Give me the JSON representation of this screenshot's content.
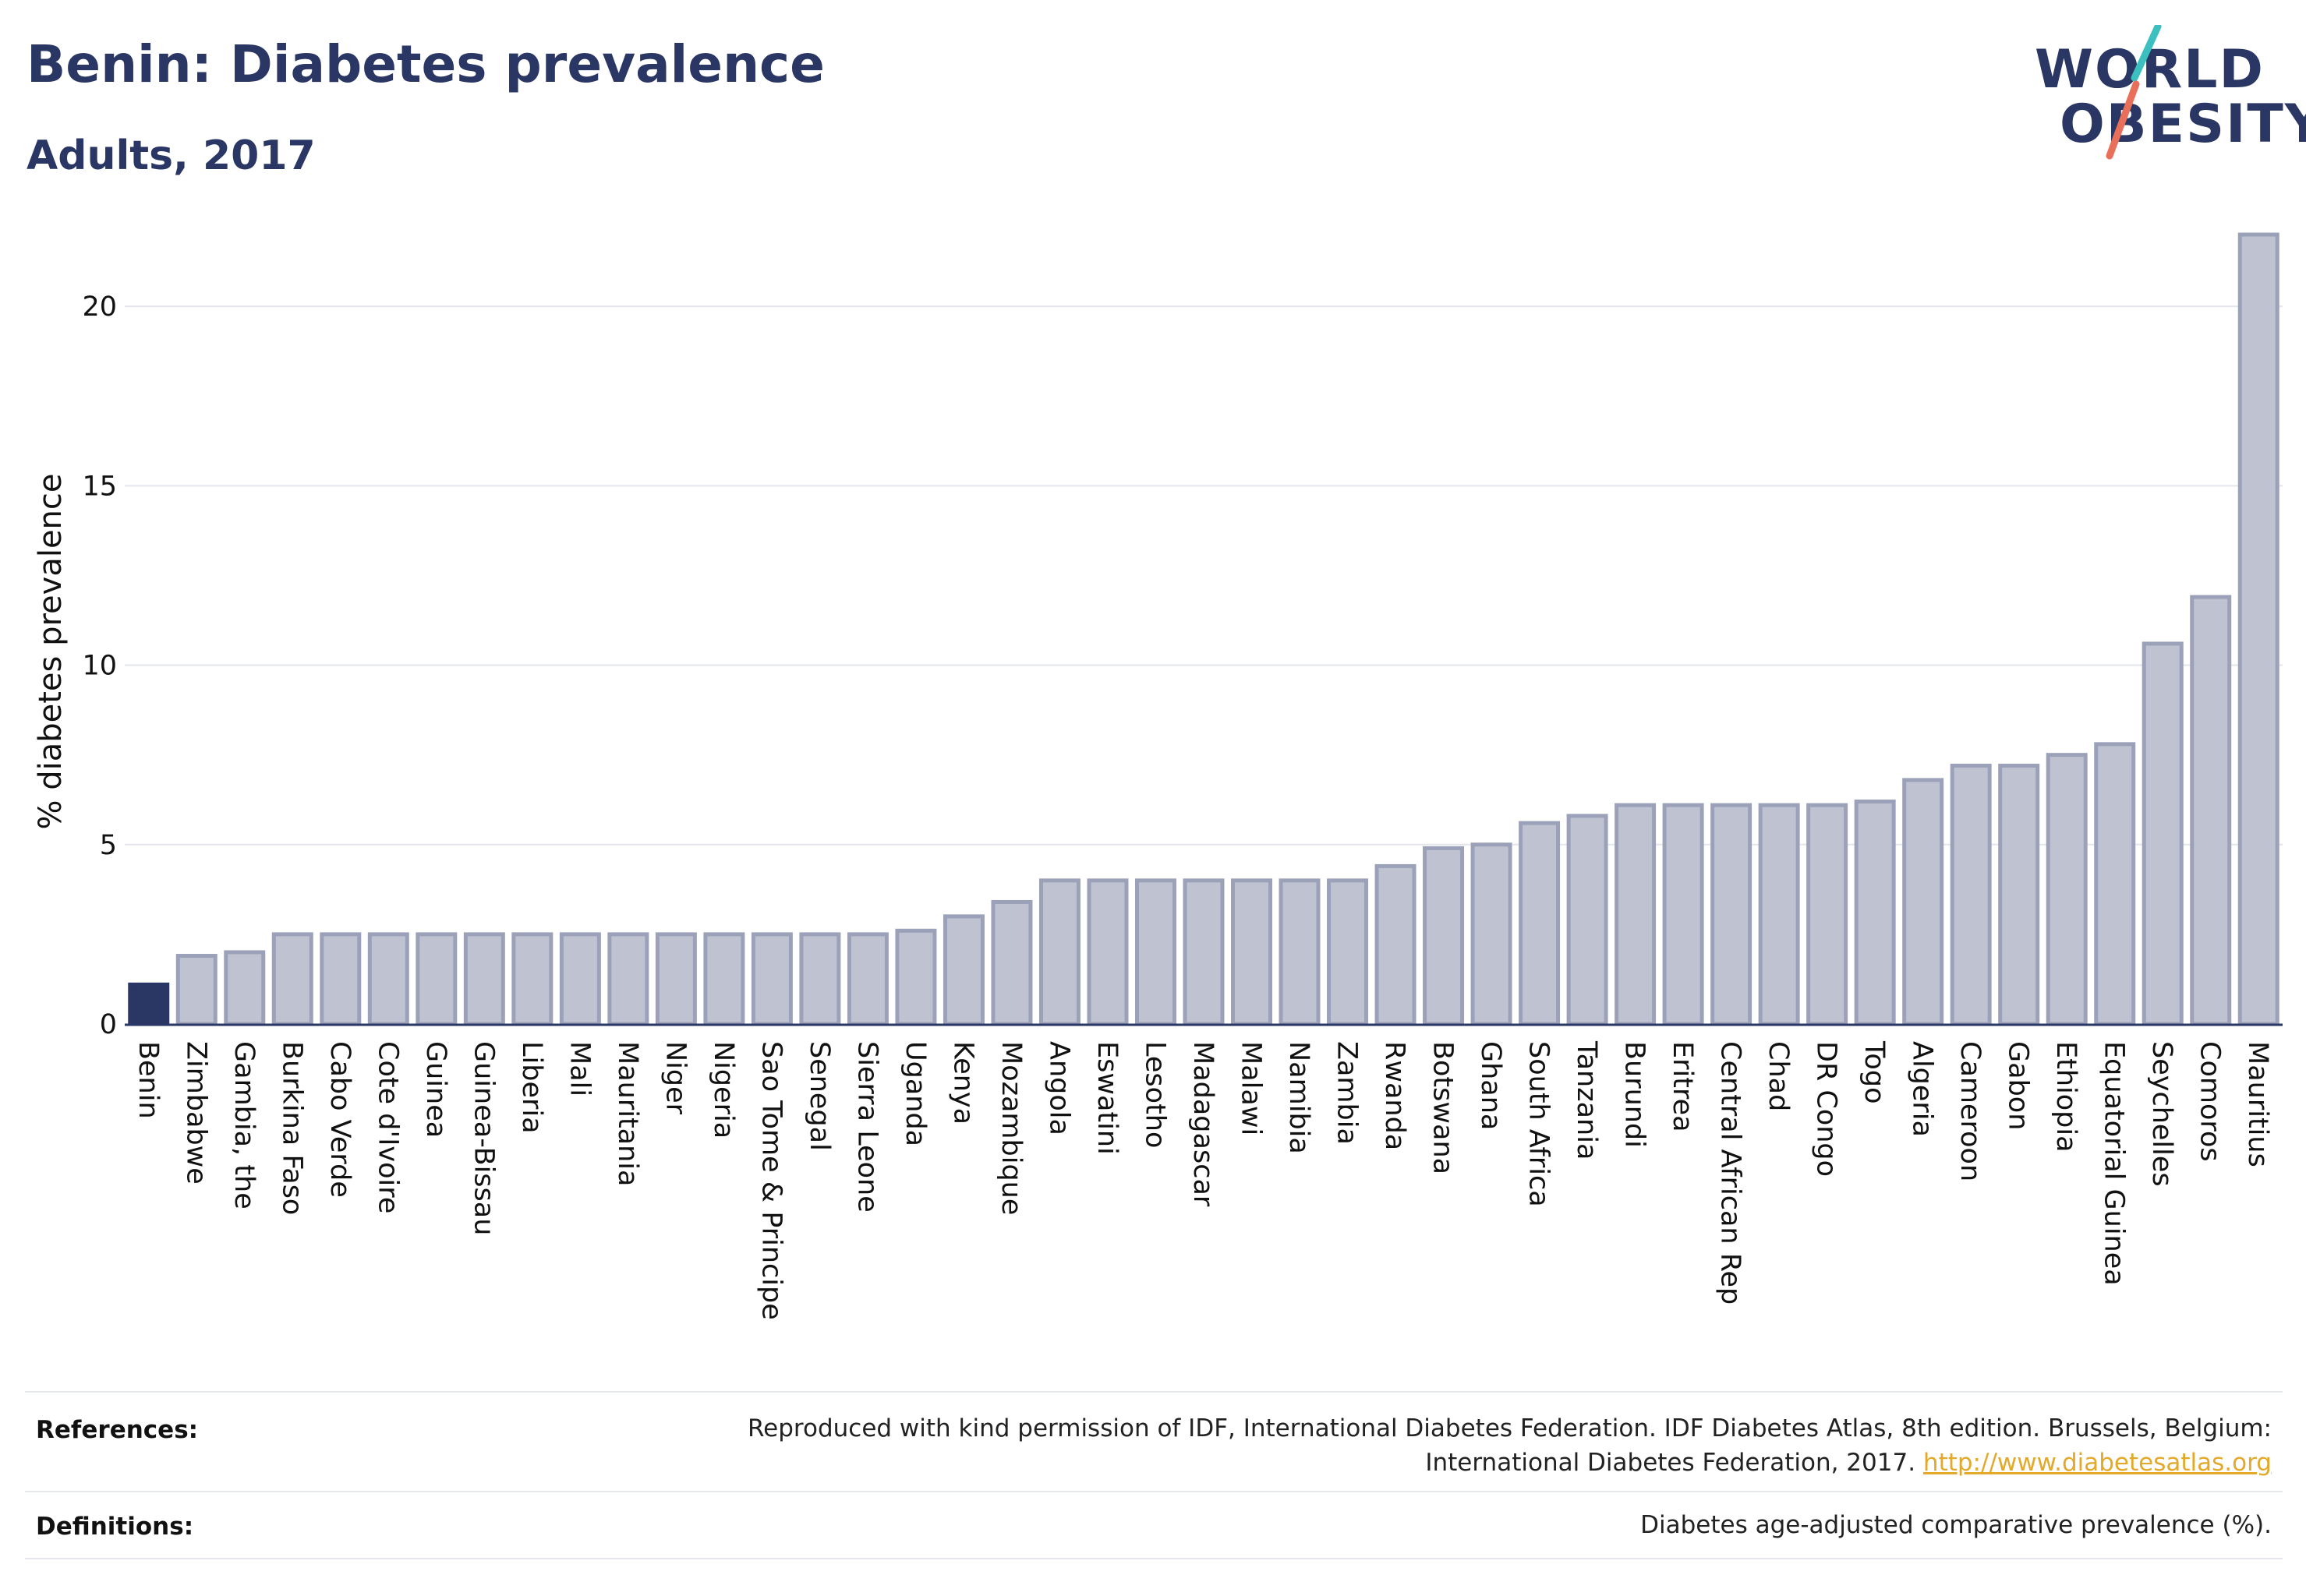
{
  "header": {
    "title": "Benin: Diabetes prevalence",
    "subtitle": "Adults, 2017"
  },
  "logo": {
    "line1": "WORLD",
    "line2": "OBESITY",
    "slash_colors": [
      "#3bbfbf",
      "#e8705a"
    ]
  },
  "colors": {
    "highlight_bar": "#2a3663",
    "other_bar_fill": "#bfc3d1",
    "other_bar_stroke": "#9ba1b8",
    "link": "#e2a92b"
  },
  "chart_data": {
    "type": "bar",
    "title": "Benin: Diabetes prevalence",
    "subtitle": "Adults, 2017",
    "xlabel": "",
    "ylabel": "% diabetes prevalence",
    "ylim": [
      0,
      22.5
    ],
    "yticks": [
      0,
      5,
      10,
      15,
      20
    ],
    "grid": true,
    "highlight": "Benin",
    "categories": [
      "Benin",
      "Zimbabwe",
      "Gambia, the",
      "Burkina Faso",
      "Cabo Verde",
      "Cote d'Ivoire",
      "Guinea",
      "Guinea-Bissau",
      "Liberia",
      "Mali",
      "Mauritania",
      "Niger",
      "Nigeria",
      "Sao Tome & Principe",
      "Senegal",
      "Sierra Leone",
      "Uganda",
      "Kenya",
      "Mozambique",
      "Angola",
      "Eswatini",
      "Lesotho",
      "Madagascar",
      "Malawi",
      "Namibia",
      "Zambia",
      "Rwanda",
      "Botswana",
      "Ghana",
      "South Africa",
      "Tanzania",
      "Burundi",
      "Eritrea",
      "Central African Rep",
      "Chad",
      "DR Congo",
      "Togo",
      "Algeria",
      "Cameroon",
      "Gabon",
      "Ethiopia",
      "Equatorial Guinea",
      "Seychelles",
      "Comoros",
      "Mauritius"
    ],
    "values": [
      1.1,
      1.9,
      2.0,
      2.5,
      2.5,
      2.5,
      2.5,
      2.5,
      2.5,
      2.5,
      2.5,
      2.5,
      2.5,
      2.5,
      2.5,
      2.5,
      2.6,
      3.0,
      3.4,
      4.0,
      4.0,
      4.0,
      4.0,
      4.0,
      4.0,
      4.0,
      4.4,
      4.9,
      5.0,
      5.6,
      5.8,
      6.1,
      6.1,
      6.1,
      6.1,
      6.1,
      6.2,
      6.8,
      7.2,
      7.2,
      7.5,
      7.8,
      10.6,
      11.9,
      22.0
    ]
  },
  "footer": {
    "references_label": "References:",
    "references_line1": "Reproduced with kind permission of IDF, International Diabetes Federation. IDF Diabetes Atlas, 8th edition. Brussels, Belgium:",
    "references_line2": "International Diabetes Federation, 2017.",
    "references_link": "http://www.diabetesatlas.org",
    "definitions_label": "Definitions:",
    "definitions_text": "Diabetes age-adjusted comparative prevalence (%)."
  }
}
